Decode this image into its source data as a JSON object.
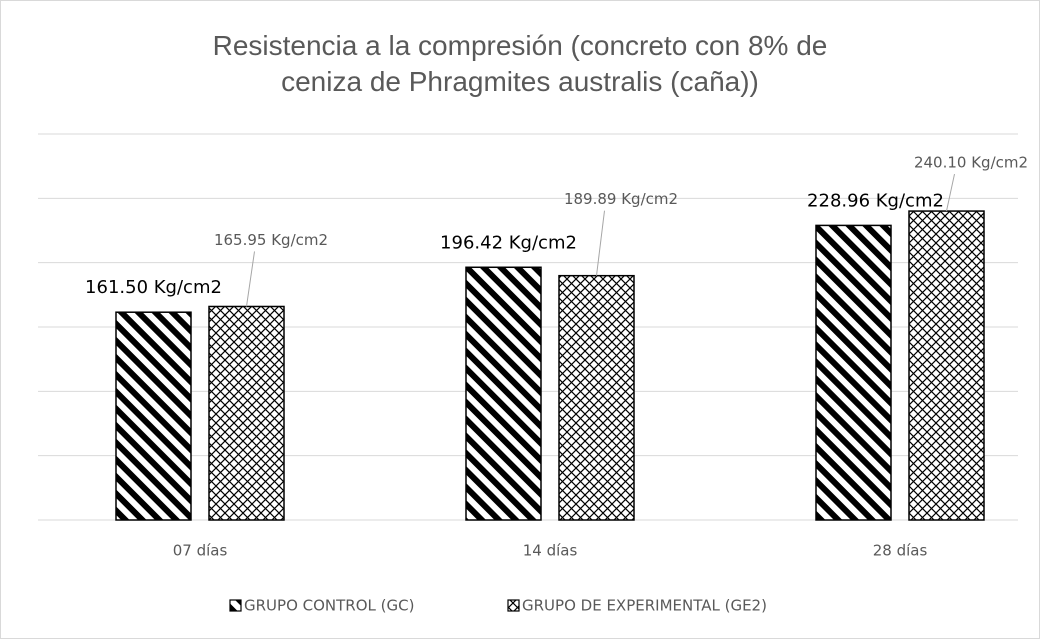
{
  "chart_data": {
    "type": "bar",
    "title": "Resistencia a la compresión (concreto con 8% de ceniza de Phragmites australis (caña))",
    "categories": [
      "07 días",
      "14 días",
      "28 días"
    ],
    "series": [
      {
        "name": "GRUPO CONTROL (GC)",
        "color": "#000000",
        "values": [
          161.5,
          196.42,
          228.96
        ],
        "value_labels": [
          "161.50 Kg/cm2",
          "196.42 Kg/cm2",
          "228.96 Kg/cm2"
        ]
      },
      {
        "name": "GRUPO DE EXPERIMENTAL (GE2)",
        "color": "#000000",
        "values": [
          165.95,
          189.89,
          240.1
        ],
        "value_labels": [
          "165.95 Kg/cm2",
          "189.89 Kg/cm2",
          "240.10 Kg/cm2"
        ]
      }
    ],
    "ylim": [
      0,
      300
    ],
    "yticks": [
      0,
      50,
      100,
      150,
      200,
      250,
      300
    ],
    "grid": true,
    "legend": "bottom"
  }
}
